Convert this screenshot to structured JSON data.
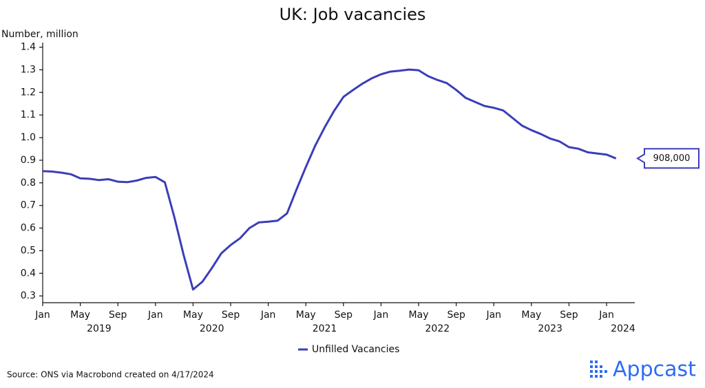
{
  "chart_data": {
    "type": "line",
    "title": "UK: Job vacancies",
    "y_label": "Number, million",
    "x": [
      "2019-01",
      "2019-02",
      "2019-03",
      "2019-04",
      "2019-05",
      "2019-06",
      "2019-07",
      "2019-08",
      "2019-09",
      "2019-10",
      "2019-11",
      "2019-12",
      "2020-01",
      "2020-02",
      "2020-03",
      "2020-04",
      "2020-05",
      "2020-06",
      "2020-07",
      "2020-08",
      "2020-09",
      "2020-10",
      "2020-11",
      "2020-12",
      "2021-01",
      "2021-02",
      "2021-03",
      "2021-04",
      "2021-05",
      "2021-06",
      "2021-07",
      "2021-08",
      "2021-09",
      "2021-10",
      "2021-11",
      "2021-12",
      "2022-01",
      "2022-02",
      "2022-03",
      "2022-04",
      "2022-05",
      "2022-06",
      "2022-07",
      "2022-08",
      "2022-09",
      "2022-10",
      "2022-11",
      "2022-12",
      "2023-01",
      "2023-02",
      "2023-03",
      "2023-04",
      "2023-05",
      "2023-06",
      "2023-07",
      "2023-08",
      "2023-09",
      "2023-10",
      "2023-11",
      "2023-12",
      "2024-01",
      "2024-02"
    ],
    "series": [
      {
        "name": "Unfilled Vacancies",
        "color": "#3b3db8",
        "values": [
          0.852,
          0.85,
          0.845,
          0.838,
          0.82,
          0.818,
          0.812,
          0.816,
          0.805,
          0.803,
          0.81,
          0.822,
          0.826,
          0.802,
          0.65,
          0.48,
          0.328,
          0.363,
          0.423,
          0.488,
          0.525,
          0.555,
          0.6,
          0.625,
          0.628,
          0.633,
          0.665,
          0.77,
          0.87,
          0.965,
          1.045,
          1.118,
          1.18,
          1.21,
          1.238,
          1.262,
          1.28,
          1.292,
          1.296,
          1.301,
          1.298,
          1.272,
          1.255,
          1.241,
          1.211,
          1.176,
          1.158,
          1.14,
          1.132,
          1.12,
          1.087,
          1.053,
          1.033,
          1.016,
          0.996,
          0.983,
          0.958,
          0.951,
          0.935,
          0.93,
          0.925,
          0.908
        ]
      }
    ],
    "xlim": [
      "2019-01",
      "2024-04"
    ],
    "xticks": [
      {
        "value": "2019-01",
        "label": "Jan"
      },
      {
        "value": "2019-05",
        "label": "May"
      },
      {
        "value": "2019-09",
        "label": "Sep"
      },
      {
        "value": "2020-01",
        "label": "Jan"
      },
      {
        "value": "2020-05",
        "label": "May"
      },
      {
        "value": "2020-09",
        "label": "Sep"
      },
      {
        "value": "2021-01",
        "label": "Jan"
      },
      {
        "value": "2021-05",
        "label": "May"
      },
      {
        "value": "2021-09",
        "label": "Sep"
      },
      {
        "value": "2022-01",
        "label": "Jan"
      },
      {
        "value": "2022-05",
        "label": "May"
      },
      {
        "value": "2022-09",
        "label": "Sep"
      },
      {
        "value": "2023-01",
        "label": "Jan"
      },
      {
        "value": "2023-05",
        "label": "May"
      },
      {
        "value": "2023-09",
        "label": "Sep"
      },
      {
        "value": "2024-01",
        "label": "Jan"
      }
    ],
    "year_labels": [
      {
        "value": "2019-07",
        "label": "2019"
      },
      {
        "value": "2020-07",
        "label": "2020"
      },
      {
        "value": "2021-07",
        "label": "2021"
      },
      {
        "value": "2022-07",
        "label": "2022"
      },
      {
        "value": "2023-07",
        "label": "2023"
      },
      {
        "value": "2024-03",
        "label": "2024"
      }
    ],
    "ylim": [
      0.27,
      1.42
    ],
    "yticks": [
      0.3,
      0.4,
      0.5,
      0.6,
      0.7,
      0.8,
      0.9,
      {
        "value": 1.0,
        "label": "1.0"
      },
      1.1,
      1.2,
      1.3,
      1.4
    ],
    "annotation": {
      "x": "2024-02",
      "value": 0.908,
      "label": "908,000"
    },
    "legend": "bottom",
    "source": "Source: ONS via Macrobond created on 4/17/2024",
    "brand": "Appcast"
  }
}
